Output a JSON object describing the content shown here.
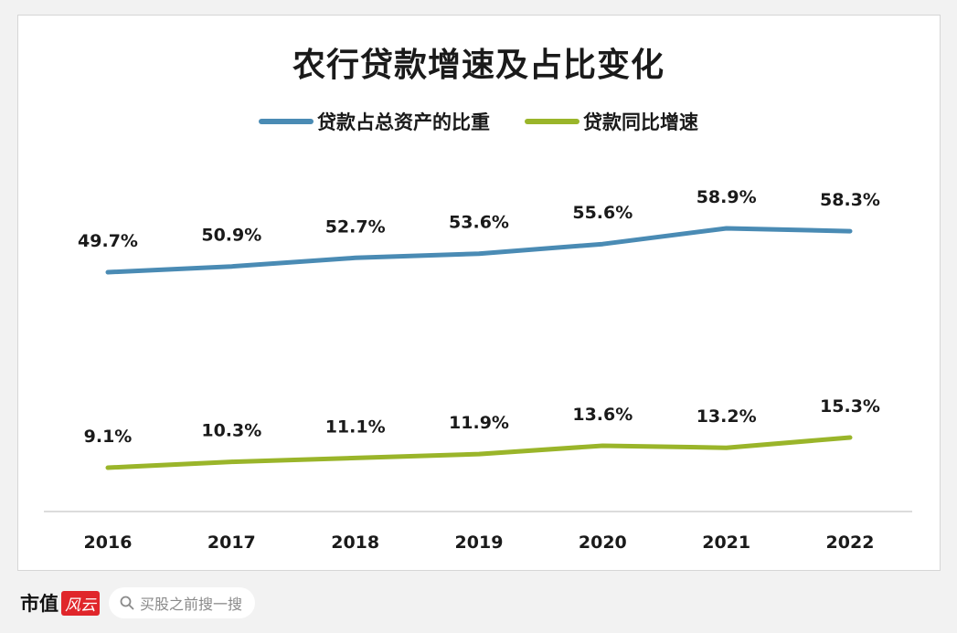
{
  "chart_data": {
    "type": "line",
    "title": "农行贷款增速及占比变化",
    "categories": [
      "2016",
      "2017",
      "2018",
      "2019",
      "2020",
      "2021",
      "2022"
    ],
    "series": [
      {
        "name": "贷款占总资产的比重",
        "color": "#4a8bb4",
        "values": [
          49.7,
          50.9,
          52.7,
          53.6,
          55.6,
          58.9,
          58.3
        ],
        "labels": [
          "49.7%",
          "50.9%",
          "52.7%",
          "53.6%",
          "55.6%",
          "58.9%",
          "58.3%"
        ]
      },
      {
        "name": "贷款同比增速",
        "color": "#9ab52a",
        "values": [
          9.1,
          10.3,
          11.1,
          11.9,
          13.6,
          13.2,
          15.3
        ],
        "labels": [
          "9.1%",
          "10.3%",
          "11.1%",
          "11.9%",
          "13.6%",
          "13.2%",
          "15.3%"
        ]
      }
    ],
    "legend_position": "top-center",
    "grid": false
  },
  "footer": {
    "brand_text": "市值",
    "brand_seal": "风云",
    "search_placeholder": "买股之前搜一搜",
    "search_icon": "search-icon"
  }
}
